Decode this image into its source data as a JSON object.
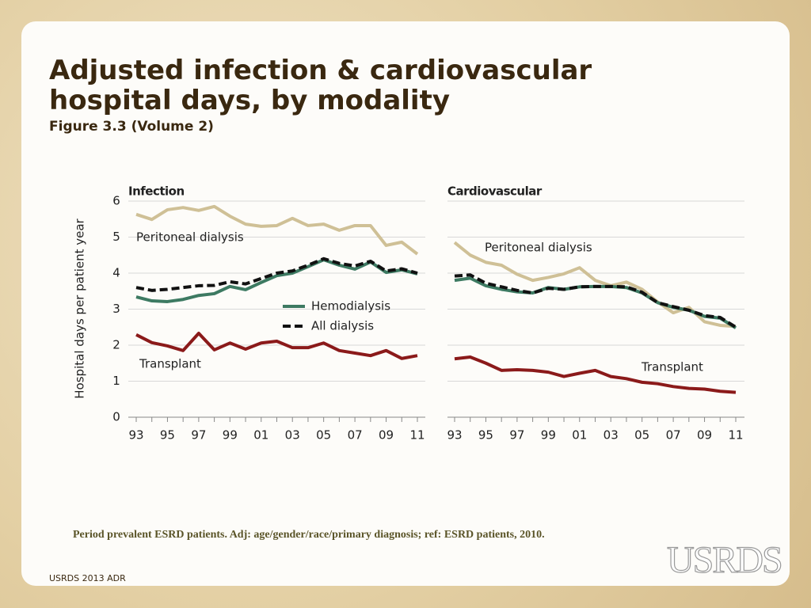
{
  "slide": {
    "title": "Adjusted infection & cardiovascular hospital days, by modality",
    "subtitle": "Figure 3.3 (Volume 2)",
    "note": "Period prevalent ESRD patients. Adj: age/gender/race/primary diagnosis; ref: ESRD patients, 2010.",
    "footer": "USRDS 2013 ADR",
    "logo": "USRDS"
  },
  "chart_data": [
    {
      "type": "line",
      "title": "Infection",
      "ylabel": "Hospital days per patient year",
      "categories": [
        "93",
        null,
        "95",
        null,
        "97",
        null,
        "99",
        null,
        "01",
        null,
        "03",
        null,
        "05",
        null,
        "07",
        null,
        "09",
        null,
        "11"
      ],
      "ylim": [
        0,
        6
      ],
      "yticks": [
        0,
        1,
        2,
        3,
        4,
        5,
        6
      ],
      "grid": true,
      "series": [
        {
          "name": "Peritoneal dialysis",
          "color": "#cfc096",
          "values": [
            5.63,
            5.49,
            5.76,
            5.82,
            5.74,
            5.85,
            5.58,
            5.36,
            5.3,
            5.32,
            5.52,
            5.32,
            5.36,
            5.19,
            5.32,
            5.32,
            4.77,
            4.86,
            4.53
          ]
        },
        {
          "name": "Hemodialysis",
          "color": "#3d7a62",
          "values": [
            3.34,
            3.23,
            3.21,
            3.27,
            3.38,
            3.43,
            3.63,
            3.54,
            3.74,
            3.93,
            4.0,
            4.18,
            4.37,
            4.22,
            4.11,
            4.31,
            4.02,
            4.09,
            3.98
          ]
        },
        {
          "name": "All dialysis",
          "color": "#111111",
          "dash": true,
          "values": [
            3.6,
            3.52,
            3.55,
            3.6,
            3.65,
            3.66,
            3.76,
            3.7,
            3.85,
            4.0,
            4.06,
            4.22,
            4.4,
            4.27,
            4.2,
            4.33,
            4.06,
            4.12,
            4.0
          ]
        },
        {
          "name": "Transplant",
          "color": "#8b1a1a",
          "values": [
            2.29,
            2.07,
            1.98,
            1.85,
            2.33,
            1.87,
            2.06,
            1.89,
            2.06,
            2.11,
            1.93,
            1.93,
            2.06,
            1.85,
            1.78,
            1.71,
            1.85,
            1.63,
            1.71
          ]
        }
      ]
    },
    {
      "type": "line",
      "title": "Cardiovascular",
      "categories": [
        "93",
        null,
        "95",
        null,
        "97",
        null,
        "99",
        null,
        "01",
        null,
        "03",
        null,
        "05",
        null,
        "07",
        null,
        "09",
        null,
        "11"
      ],
      "ylim": [
        0,
        6
      ],
      "grid": true,
      "series": [
        {
          "name": "Peritoneal dialysis",
          "color": "#cfc096",
          "values": [
            4.85,
            4.5,
            4.3,
            4.22,
            3.97,
            3.8,
            3.88,
            3.98,
            4.15,
            3.8,
            3.65,
            3.75,
            3.55,
            3.2,
            2.9,
            3.05,
            2.65,
            2.55,
            2.52
          ]
        },
        {
          "color": "#3d7a62",
          "values": [
            3.8,
            3.86,
            3.65,
            3.55,
            3.48,
            3.45,
            3.6,
            3.55,
            3.62,
            3.63,
            3.63,
            3.6,
            3.45,
            3.18,
            3.05,
            2.97,
            2.8,
            2.75,
            2.48
          ]
        },
        {
          "color": "#111111",
          "dash": true,
          "values": [
            3.92,
            3.95,
            3.72,
            3.62,
            3.52,
            3.45,
            3.58,
            3.55,
            3.62,
            3.63,
            3.63,
            3.62,
            3.47,
            3.18,
            3.07,
            2.97,
            2.82,
            2.77,
            2.5
          ]
        },
        {
          "name": "Transplant",
          "color": "#8b1a1a",
          "values": [
            1.62,
            1.67,
            1.5,
            1.3,
            1.32,
            1.3,
            1.25,
            1.13,
            1.22,
            1.3,
            1.13,
            1.07,
            0.97,
            0.93,
            0.85,
            0.8,
            0.78,
            0.72,
            0.69
          ]
        }
      ]
    }
  ]
}
